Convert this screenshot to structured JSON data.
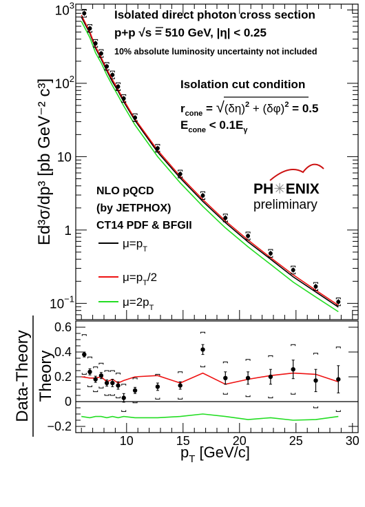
{
  "chart_data": [
    {
      "type": "scatter",
      "panel": "top",
      "yscale": "log",
      "xlim": [
        5.5,
        30.5
      ],
      "ylim": [
        0.06,
        1200
      ],
      "ylabel": "Ed³σ/dp³ [pb GeV⁻² c³]",
      "yticks": [
        {
          "value": 1000,
          "base": "10",
          "exp": "3"
        },
        {
          "value": 100,
          "base": "10",
          "exp": "2"
        },
        {
          "value": 10,
          "base": "10",
          "exp": ""
        },
        {
          "value": 1,
          "base": "1",
          "exp": ""
        },
        {
          "value": 0.1,
          "base": "10",
          "exp": "−1"
        }
      ],
      "annotations": {
        "title_line1": "Isolated direct photon cross section",
        "title_line2_a": "p+p  ",
        "title_line2_sqrt": "√",
        "title_line2_b": "s = 510 GeV, |η| < 0.25",
        "note": "10% absolute luminosity uncertainty not included",
        "iso_title": "Isolation cut condition",
        "iso_r": "r",
        "iso_r_sub": "cone",
        "iso_r_eq": " = ",
        "iso_r_sqrt": "√",
        "iso_r_term1": "(δη)",
        "iso_r_plus": " + (δφ)",
        "iso_r_end": " = 0.5",
        "iso_sq": "2",
        "iso_e": "E",
        "iso_e_sub": "cone",
        "iso_e_rest": " < 0.1E",
        "iso_e_gamma": "γ",
        "theory_1": "NLO pQCD",
        "theory_2": "(by JETPHOX)",
        "theory_3": "CT14 PDF & BFGII",
        "logo_ph": "PH",
        "logo_star": "✳",
        "logo_enix": "ENIX",
        "logo_sub": "preliminary"
      },
      "legend": [
        {
          "prefix": "μ=p",
          "sub": "T",
          "suffix": "",
          "color": "#000000"
        },
        {
          "prefix": "μ=p",
          "sub": "T",
          "suffix": "/2",
          "color": "#ee1111"
        },
        {
          "prefix": "μ=2p",
          "sub": "T",
          "suffix": "",
          "color": "#22dd22"
        }
      ],
      "data_points": {
        "x": [
          6.25,
          6.75,
          7.25,
          7.75,
          8.25,
          8.75,
          9.25,
          9.75,
          10.75,
          12.75,
          14.75,
          16.75,
          18.75,
          20.75,
          22.75,
          24.75,
          26.75,
          28.75
        ],
        "y": [
          900,
          560,
          350,
          255,
          170,
          130,
          90,
          62,
          34,
          13,
          5.8,
          2.95,
          1.46,
          0.83,
          0.48,
          0.285,
          0.17,
          0.105
        ]
      },
      "series": [
        {
          "name": "μ=pT",
          "color": "#000000",
          "x": [
            6.0,
            6.75,
            7.25,
            7.75,
            8.25,
            8.75,
            9.25,
            9.75,
            10.75,
            12.75,
            14.75,
            16.75,
            18.75,
            20.75,
            22.75,
            24.75,
            26.75,
            28.75
          ],
          "y": [
            800,
            480,
            300,
            215,
            148,
            105,
            78,
            56,
            31,
            11.5,
            5.1,
            2.45,
            1.26,
            0.69,
            0.4,
            0.23,
            0.143,
            0.089
          ]
        },
        {
          "name": "μ=pT/2",
          "color": "#ee1111",
          "x": [
            6.0,
            6.75,
            7.25,
            7.75,
            8.25,
            8.75,
            9.25,
            9.75,
            10.75,
            12.75,
            14.75,
            16.75,
            18.75,
            20.75,
            22.75,
            24.75,
            26.75,
            28.75
          ],
          "y": [
            850,
            500,
            315,
            225,
            155,
            112,
            82,
            59,
            32.5,
            12.2,
            5.4,
            2.6,
            1.33,
            0.73,
            0.42,
            0.245,
            0.151,
            0.094
          ]
        },
        {
          "name": "μ=2pT",
          "color": "#22dd22",
          "x": [
            6.0,
            6.75,
            7.25,
            7.75,
            8.25,
            8.75,
            9.25,
            9.75,
            10.75,
            12.75,
            14.75,
            16.75,
            18.75,
            20.75,
            22.75,
            24.75,
            26.75,
            28.75
          ],
          "y": [
            700,
            420,
            260,
            190,
            130,
            93,
            68,
            49,
            27,
            10.0,
            4.4,
            2.1,
            1.07,
            0.59,
            0.34,
            0.195,
            0.122,
            0.077
          ]
        }
      ]
    },
    {
      "type": "scatter",
      "panel": "bottom",
      "xlim": [
        5.5,
        30.5
      ],
      "ylim": [
        -0.25,
        0.65
      ],
      "xlabel_main": "p",
      "xlabel_sub": "T",
      "xlabel_rest": " [GeV/c]",
      "ylabel_num": "Data-Theory",
      "ylabel_den": "Theory",
      "xticks": [
        "10",
        "15",
        "20",
        "25",
        "30"
      ],
      "xtick_values": [
        10,
        15,
        20,
        25,
        30
      ],
      "yticks": [
        "−0.2",
        "0",
        "0.2",
        "0.4",
        "0.6"
      ],
      "ytick_values": [
        -0.2,
        0,
        0.2,
        0.4,
        0.6
      ],
      "data_points": {
        "x": [
          6.25,
          6.75,
          7.25,
          7.75,
          8.25,
          8.75,
          9.25,
          9.75,
          10.75,
          12.75,
          14.75,
          16.75,
          18.75,
          20.75,
          22.75,
          24.75,
          26.75,
          28.75
        ],
        "y": [
          0.38,
          0.24,
          0.18,
          0.21,
          0.15,
          0.15,
          0.13,
          0.03,
          0.09,
          0.12,
          0.13,
          0.42,
          0.19,
          0.19,
          0.2,
          0.26,
          0.17,
          0.18
        ],
        "err": [
          0.02,
          0.025,
          0.025,
          0.025,
          0.025,
          0.03,
          0.03,
          0.035,
          0.025,
          0.03,
          0.03,
          0.04,
          0.05,
          0.05,
          0.06,
          0.075,
          0.09,
          0.11
        ],
        "sys": [
          0.16,
          0.12,
          0.1,
          0.1,
          0.1,
          0.1,
          0.1,
          0.11,
          0.1,
          0.1,
          0.11,
          0.14,
          0.13,
          0.15,
          0.17,
          0.2,
          0.22,
          0.26
        ]
      },
      "series": [
        {
          "name": "μ=pT/2",
          "color": "#ee1111",
          "x": [
            6.0,
            6.75,
            7.25,
            7.75,
            8.25,
            8.75,
            9.25,
            9.75,
            10.75,
            12.75,
            14.75,
            16.75,
            18.75,
            20.75,
            22.75,
            24.75,
            26.75,
            28.75
          ],
          "y": [
            0.2,
            0.19,
            0.19,
            0.2,
            0.16,
            0.18,
            0.15,
            0.17,
            0.2,
            0.21,
            0.15,
            0.23,
            0.14,
            0.18,
            0.21,
            0.23,
            0.22,
            0.16
          ]
        },
        {
          "name": "μ=2pT",
          "color": "#22dd22",
          "x": [
            6.0,
            6.75,
            7.25,
            7.75,
            8.25,
            8.75,
            9.25,
            9.75,
            10.75,
            12.75,
            14.75,
            16.75,
            18.75,
            20.75,
            22.75,
            24.75,
            26.75,
            28.75
          ],
          "y": [
            -0.12,
            -0.13,
            -0.12,
            -0.12,
            -0.13,
            -0.12,
            -0.13,
            -0.12,
            -0.13,
            -0.13,
            -0.12,
            -0.1,
            -0.12,
            -0.145,
            -0.13,
            -0.15,
            -0.145,
            -0.12
          ]
        }
      ]
    }
  ]
}
